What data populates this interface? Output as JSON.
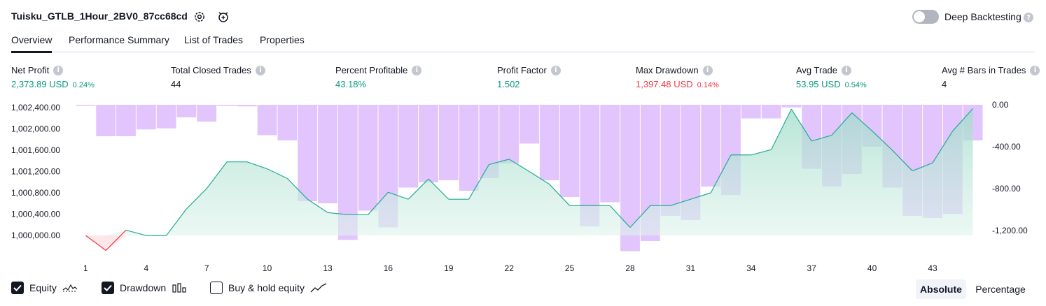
{
  "header": {
    "title": "Tuisku_GTLB_1Hour_2BV0_87cc68cd",
    "deep_backtesting_label": "Deep Backtesting",
    "deep_backtesting_enabled": false
  },
  "tabs": [
    {
      "label": "Overview",
      "active": true
    },
    {
      "label": "Performance Summary",
      "active": false
    },
    {
      "label": "List of Trades",
      "active": false
    },
    {
      "label": "Properties",
      "active": false
    }
  ],
  "metrics": [
    {
      "label": "Net Profit",
      "value": "2,373.89 USD",
      "pct": "0.24%",
      "color": "#089981"
    },
    {
      "label": "Total Closed Trades",
      "value": "44",
      "pct": "",
      "color": "#131722"
    },
    {
      "label": "Percent Profitable",
      "value": "43.18%",
      "pct": "",
      "color": "#089981"
    },
    {
      "label": "Profit Factor",
      "value": "1.502",
      "pct": "",
      "color": "#089981"
    },
    {
      "label": "Max Drawdown",
      "value": "1,397.48 USD",
      "pct": "0.14%",
      "color": "#f23645"
    },
    {
      "label": "Avg Trade",
      "value": "53.95 USD",
      "pct": "0.54%",
      "color": "#089981"
    },
    {
      "label": "Avg # Bars in Trades",
      "value": "4",
      "pct": "",
      "color": "#131722"
    }
  ],
  "chart_data": {
    "type": "line",
    "x_ticks": [
      "1",
      "4",
      "7",
      "10",
      "13",
      "16",
      "19",
      "22",
      "25",
      "28",
      "31",
      "34",
      "37",
      "40",
      "43"
    ],
    "y_left_ticks": [
      "1,002,400.00",
      "1,002,000.00",
      "1,001,600.00",
      "1,001,200.00",
      "1,000,800.00",
      "1,000,400.00",
      "1,000,000.00"
    ],
    "y_right_ticks": [
      "0.00",
      "-400.00",
      "-800.00",
      "-1,200.00"
    ],
    "ylim_left": [
      999700,
      1002450
    ],
    "ylim_right": [
      -1400,
      0
    ],
    "series": [
      {
        "name": "Equity",
        "x": [
          1,
          2,
          3,
          4,
          5,
          6,
          7,
          8,
          9,
          10,
          11,
          12,
          13,
          14,
          15,
          16,
          17,
          18,
          19,
          20,
          21,
          22,
          23,
          24,
          25,
          26,
          27,
          28,
          29,
          30,
          31,
          32,
          33,
          34,
          35,
          36,
          37,
          38,
          39,
          40,
          41,
          42,
          43,
          44,
          45
        ],
        "values": [
          1000000,
          999720,
          1000100,
          1000000,
          1000000,
          1000500,
          1000880,
          1001380,
          1001380,
          1001250,
          1001070,
          1000680,
          1000430,
          1000390,
          1000390,
          1000810,
          1000680,
          1001060,
          1000680,
          1000680,
          1001330,
          1001430,
          1001200,
          1000960,
          1000560,
          1000560,
          1000560,
          1000150,
          1000560,
          1000560,
          1000680,
          1000800,
          1001510,
          1001510,
          1001610,
          1002370,
          1001770,
          1001880,
          1002300,
          1001960,
          1001600,
          1001210,
          1001360,
          1001960,
          1002380
        ]
      },
      {
        "name": "Drawdown",
        "x": [
          1,
          2,
          3,
          4,
          5,
          6,
          7,
          8,
          9,
          10,
          11,
          12,
          13,
          14,
          15,
          16,
          17,
          18,
          19,
          20,
          21,
          22,
          23,
          24,
          25,
          26,
          27,
          28,
          29,
          30,
          31,
          32,
          33,
          34,
          35,
          36,
          37,
          38,
          39,
          40,
          41,
          42,
          43,
          44,
          45
        ],
        "values": [
          -10,
          -300,
          -300,
          -235,
          -225,
          -120,
          -160,
          -10,
          -15,
          -290,
          -340,
          -920,
          -940,
          -1290,
          -1010,
          -1170,
          -790,
          -740,
          -720,
          -820,
          -700,
          -560,
          -370,
          -720,
          -880,
          -1160,
          -930,
          -1397,
          -1300,
          -1060,
          -1100,
          -780,
          -860,
          -130,
          -130,
          -25,
          -610,
          -780,
          -660,
          -400,
          -790,
          -1060,
          -1080,
          -1040,
          -340
        ]
      }
    ]
  },
  "legend": {
    "equity_label": "Equity",
    "drawdown_label": "Drawdown",
    "buy_hold_label": "Buy & hold equity",
    "equity_checked": true,
    "drawdown_checked": true,
    "buy_hold_checked": false
  },
  "mode_buttons": {
    "absolute_label": "Absolute",
    "percentage_label": "Percentage"
  }
}
